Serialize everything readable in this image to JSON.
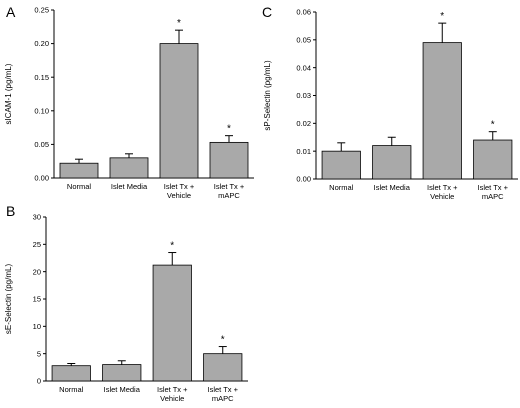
{
  "colors": {
    "bar_fill": "#a9a9a9",
    "bar_stroke": "#000000",
    "axis": "#000000"
  },
  "chart_data": [
    {
      "panel": "A",
      "type": "bar",
      "ylabel": "sICAM-1 (pg/mL)",
      "categories": [
        [
          "Normal"
        ],
        [
          "Islet Media"
        ],
        [
          "Islet Tx +",
          "Vehicle"
        ],
        [
          "Islet Tx +",
          "mAPC"
        ]
      ],
      "values": [
        0.022,
        0.03,
        0.2,
        0.053
      ],
      "errors": [
        0.006,
        0.006,
        0.02,
        0.01
      ],
      "significant": [
        false,
        false,
        true,
        true
      ],
      "significance_marker": "*",
      "ylim": [
        0,
        0.25
      ],
      "yticks": [
        "0.00",
        "0.05",
        "0.10",
        "0.15",
        "0.20",
        "0.25"
      ],
      "grid": false
    },
    {
      "panel": "B",
      "type": "bar",
      "ylabel": "sE-Selectin (pg/mL)",
      "categories": [
        [
          "Normal"
        ],
        [
          "Islet Media"
        ],
        [
          "Islet Tx +",
          "Vehicle"
        ],
        [
          "Islet Tx +",
          "mAPC"
        ]
      ],
      "values": [
        2.8,
        3.0,
        21.2,
        5.0
      ],
      "errors": [
        0.4,
        0.7,
        2.3,
        1.3
      ],
      "significant": [
        false,
        false,
        true,
        true
      ],
      "significance_marker": "*",
      "ylim": [
        0,
        30
      ],
      "yticks": [
        "0",
        "5",
        "10",
        "15",
        "20",
        "25",
        "30"
      ],
      "grid": false
    },
    {
      "panel": "C",
      "type": "bar",
      "ylabel": "sP-Selectin (pg/mL)",
      "categories": [
        [
          "Normal"
        ],
        [
          "Islet Media"
        ],
        [
          "Islet Tx +",
          "Vehicle"
        ],
        [
          "Islet Tx +",
          "mAPC"
        ]
      ],
      "values": [
        0.01,
        0.012,
        0.049,
        0.014
      ],
      "errors": [
        0.003,
        0.003,
        0.007,
        0.003
      ],
      "significant": [
        false,
        false,
        true,
        true
      ],
      "significance_marker": "*",
      "ylim": [
        0,
        0.06
      ],
      "yticks": [
        "0.00",
        "0.01",
        "0.02",
        "0.03",
        "0.04",
        "0.05",
        "0.06"
      ],
      "grid": false
    }
  ]
}
